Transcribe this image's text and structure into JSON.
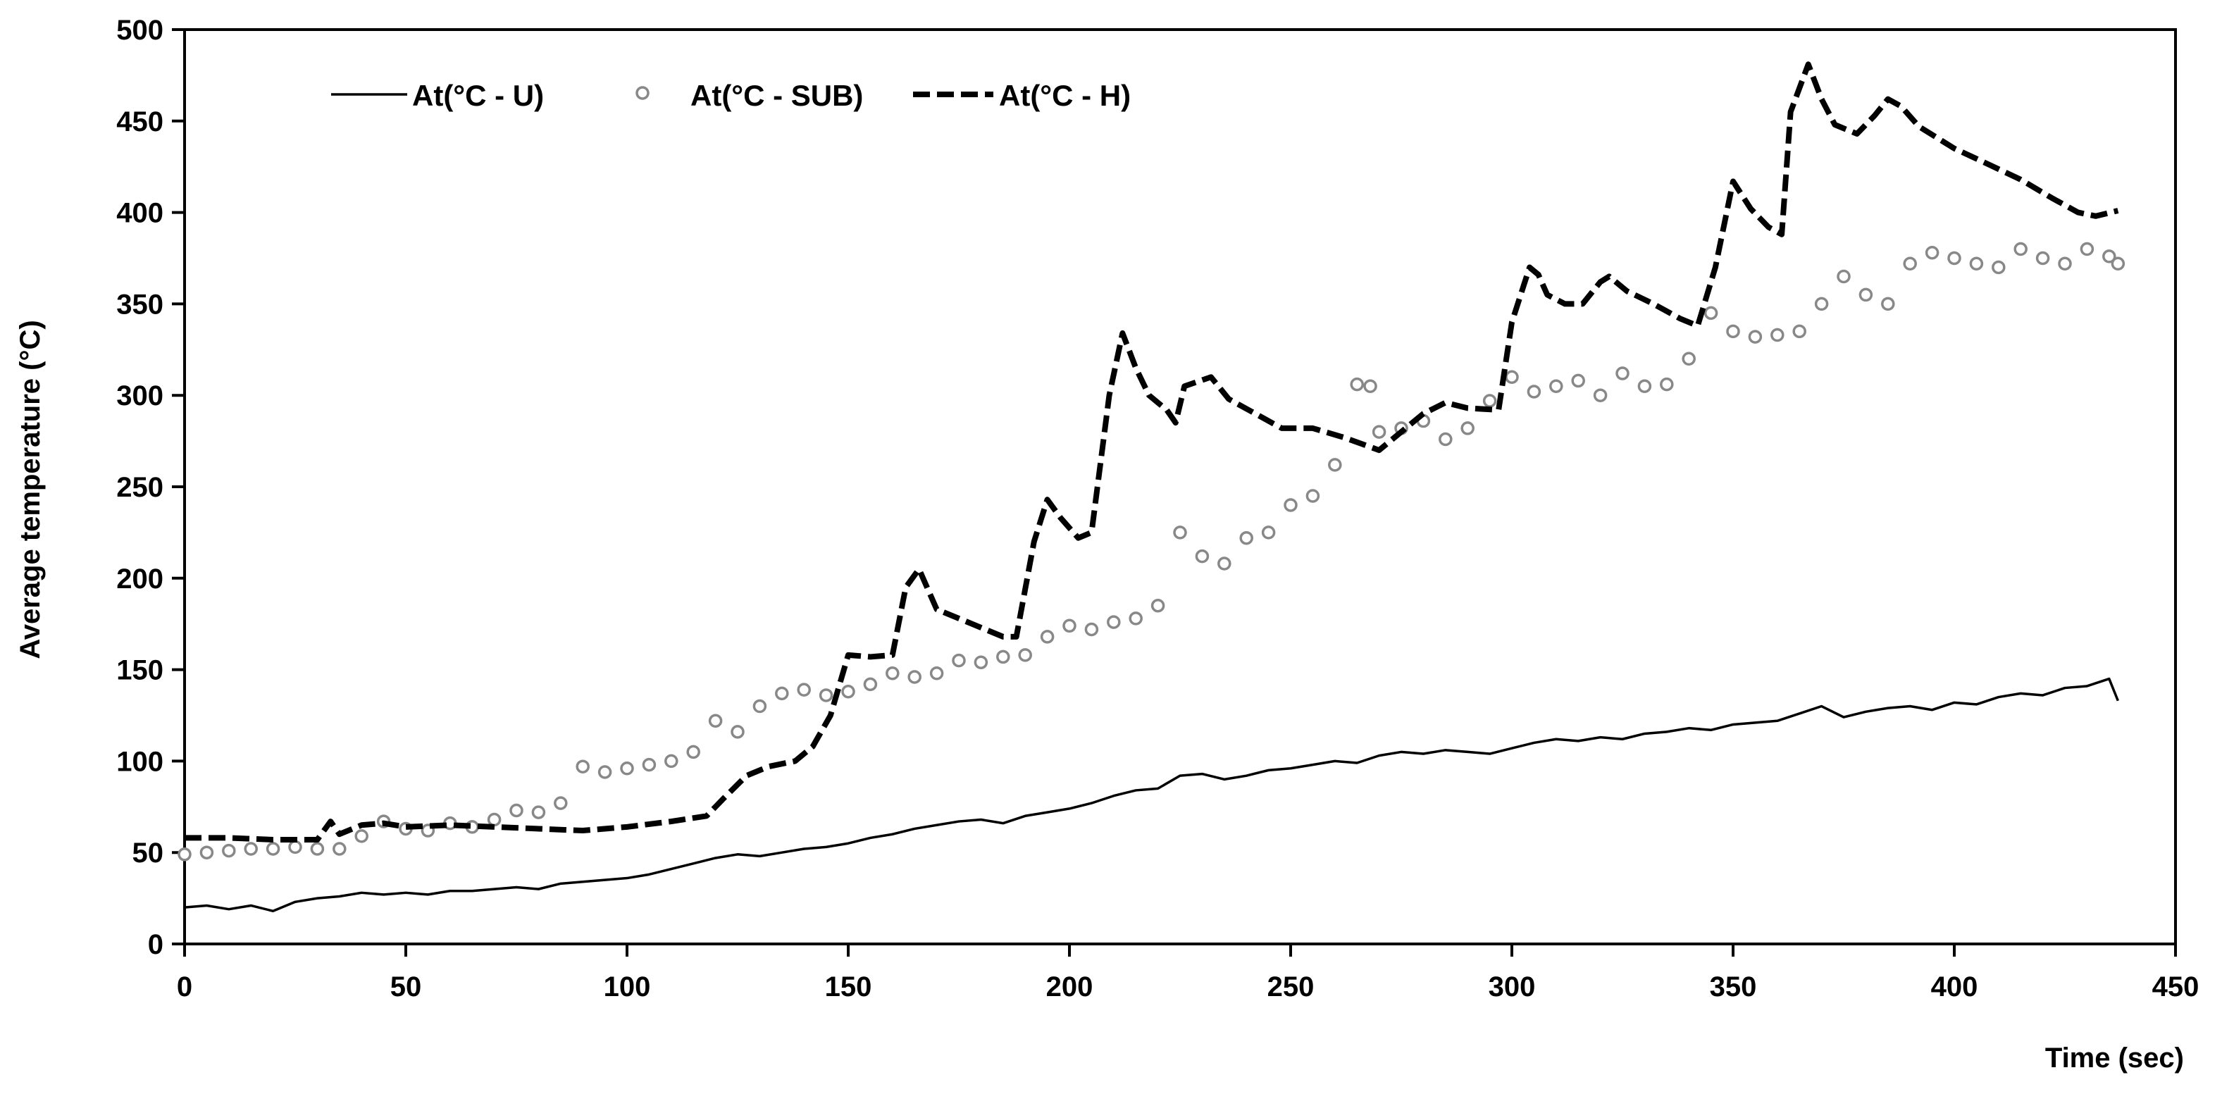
{
  "chart_data": {
    "type": "line",
    "title": "",
    "xlabel": "Time (sec)",
    "ylabel": "Average temperature (°C)",
    "xlim": [
      0,
      450
    ],
    "ylim": [
      0,
      500
    ],
    "xticks": [
      "0",
      "50",
      "100",
      "150",
      "200",
      "250",
      "300",
      "350",
      "400",
      "450"
    ],
    "yticks": [
      "0",
      "50",
      "100",
      "150",
      "200",
      "250",
      "300",
      "350",
      "400",
      "450",
      "500"
    ],
    "grid": false,
    "legend_position": "top-left",
    "series": [
      {
        "name": "At(°C - U)",
        "style": "solid-thin-line",
        "color": "#000000",
        "points": [
          [
            0,
            20
          ],
          [
            5,
            21
          ],
          [
            10,
            19
          ],
          [
            15,
            21
          ],
          [
            20,
            18
          ],
          [
            25,
            23
          ],
          [
            30,
            25
          ],
          [
            35,
            26
          ],
          [
            40,
            28
          ],
          [
            45,
            27
          ],
          [
            50,
            28
          ],
          [
            55,
            27
          ],
          [
            60,
            29
          ],
          [
            65,
            29
          ],
          [
            70,
            30
          ],
          [
            75,
            31
          ],
          [
            80,
            30
          ],
          [
            85,
            33
          ],
          [
            90,
            34
          ],
          [
            95,
            35
          ],
          [
            100,
            36
          ],
          [
            105,
            38
          ],
          [
            110,
            41
          ],
          [
            115,
            44
          ],
          [
            120,
            47
          ],
          [
            125,
            49
          ],
          [
            130,
            48
          ],
          [
            135,
            50
          ],
          [
            140,
            52
          ],
          [
            145,
            53
          ],
          [
            150,
            55
          ],
          [
            155,
            58
          ],
          [
            160,
            60
          ],
          [
            165,
            63
          ],
          [
            170,
            65
          ],
          [
            175,
            67
          ],
          [
            180,
            68
          ],
          [
            185,
            66
          ],
          [
            190,
            70
          ],
          [
            195,
            72
          ],
          [
            200,
            74
          ],
          [
            205,
            77
          ],
          [
            210,
            81
          ],
          [
            215,
            84
          ],
          [
            220,
            85
          ],
          [
            225,
            92
          ],
          [
            230,
            93
          ],
          [
            235,
            90
          ],
          [
            240,
            92
          ],
          [
            245,
            95
          ],
          [
            250,
            96
          ],
          [
            255,
            98
          ],
          [
            260,
            100
          ],
          [
            265,
            99
          ],
          [
            270,
            103
          ],
          [
            275,
            105
          ],
          [
            280,
            104
          ],
          [
            285,
            106
          ],
          [
            290,
            105
          ],
          [
            295,
            104
          ],
          [
            300,
            107
          ],
          [
            305,
            110
          ],
          [
            310,
            112
          ],
          [
            315,
            111
          ],
          [
            320,
            113
          ],
          [
            325,
            112
          ],
          [
            330,
            115
          ],
          [
            335,
            116
          ],
          [
            340,
            118
          ],
          [
            345,
            117
          ],
          [
            350,
            120
          ],
          [
            355,
            121
          ],
          [
            360,
            122
          ],
          [
            365,
            126
          ],
          [
            370,
            130
          ],
          [
            375,
            124
          ],
          [
            380,
            127
          ],
          [
            385,
            129
          ],
          [
            390,
            130
          ],
          [
            395,
            128
          ],
          [
            400,
            132
          ],
          [
            405,
            131
          ],
          [
            410,
            135
          ],
          [
            415,
            137
          ],
          [
            420,
            136
          ],
          [
            425,
            140
          ],
          [
            430,
            141
          ],
          [
            435,
            145
          ],
          [
            437,
            133
          ]
        ]
      },
      {
        "name": "At(°C - SUB)",
        "style": "hollow-markers",
        "color": "#888888",
        "points": [
          [
            0,
            49
          ],
          [
            5,
            50
          ],
          [
            10,
            51
          ],
          [
            15,
            52
          ],
          [
            20,
            52
          ],
          [
            25,
            53
          ],
          [
            30,
            52
          ],
          [
            35,
            52
          ],
          [
            40,
            59
          ],
          [
            45,
            67
          ],
          [
            50,
            63
          ],
          [
            55,
            62
          ],
          [
            60,
            66
          ],
          [
            65,
            64
          ],
          [
            70,
            68
          ],
          [
            75,
            73
          ],
          [
            80,
            72
          ],
          [
            85,
            77
          ],
          [
            90,
            97
          ],
          [
            95,
            94
          ],
          [
            100,
            96
          ],
          [
            105,
            98
          ],
          [
            110,
            100
          ],
          [
            115,
            105
          ],
          [
            120,
            122
          ],
          [
            125,
            116
          ],
          [
            130,
            130
          ],
          [
            135,
            137
          ],
          [
            140,
            139
          ],
          [
            145,
            136
          ],
          [
            150,
            138
          ],
          [
            155,
            142
          ],
          [
            160,
            148
          ],
          [
            165,
            146
          ],
          [
            170,
            148
          ],
          [
            175,
            155
          ],
          [
            180,
            154
          ],
          [
            185,
            157
          ],
          [
            190,
            158
          ],
          [
            195,
            168
          ],
          [
            200,
            174
          ],
          [
            205,
            172
          ],
          [
            210,
            176
          ],
          [
            215,
            178
          ],
          [
            220,
            185
          ],
          [
            225,
            225
          ],
          [
            230,
            212
          ],
          [
            235,
            208
          ],
          [
            240,
            222
          ],
          [
            245,
            225
          ],
          [
            250,
            240
          ],
          [
            255,
            245
          ],
          [
            260,
            262
          ],
          [
            265,
            306
          ],
          [
            268,
            305
          ],
          [
            270,
            280
          ],
          [
            275,
            282
          ],
          [
            280,
            286
          ],
          [
            285,
            276
          ],
          [
            290,
            282
          ],
          [
            295,
            297
          ],
          [
            300,
            310
          ],
          [
            305,
            302
          ],
          [
            310,
            305
          ],
          [
            315,
            308
          ],
          [
            320,
            300
          ],
          [
            325,
            312
          ],
          [
            330,
            305
          ],
          [
            335,
            306
          ],
          [
            340,
            320
          ],
          [
            345,
            345
          ],
          [
            350,
            335
          ],
          [
            355,
            332
          ],
          [
            360,
            333
          ],
          [
            365,
            335
          ],
          [
            370,
            350
          ],
          [
            375,
            365
          ],
          [
            380,
            355
          ],
          [
            385,
            350
          ],
          [
            390,
            372
          ],
          [
            395,
            378
          ],
          [
            400,
            375
          ],
          [
            405,
            372
          ],
          [
            410,
            370
          ],
          [
            415,
            380
          ],
          [
            420,
            375
          ],
          [
            425,
            372
          ],
          [
            430,
            380
          ],
          [
            435,
            376
          ],
          [
            437,
            372
          ]
        ]
      },
      {
        "name": "At(°C - H)",
        "style": "dashed-thick-line",
        "color": "#000000",
        "points": [
          [
            0,
            58
          ],
          [
            10,
            58
          ],
          [
            20,
            57
          ],
          [
            30,
            57
          ],
          [
            33,
            67
          ],
          [
            35,
            60
          ],
          [
            40,
            65
          ],
          [
            45,
            66
          ],
          [
            50,
            64
          ],
          [
            60,
            65
          ],
          [
            70,
            64
          ],
          [
            80,
            63
          ],
          [
            90,
            62
          ],
          [
            100,
            64
          ],
          [
            110,
            67
          ],
          [
            118,
            70
          ],
          [
            122,
            80
          ],
          [
            127,
            92
          ],
          [
            132,
            97
          ],
          [
            138,
            100
          ],
          [
            142,
            108
          ],
          [
            146,
            125
          ],
          [
            150,
            158
          ],
          [
            155,
            157
          ],
          [
            160,
            158
          ],
          [
            163,
            195
          ],
          [
            166,
            205
          ],
          [
            170,
            183
          ],
          [
            175,
            178
          ],
          [
            180,
            173
          ],
          [
            185,
            168
          ],
          [
            188,
            168
          ],
          [
            192,
            220
          ],
          [
            195,
            243
          ],
          [
            198,
            233
          ],
          [
            202,
            222
          ],
          [
            205,
            225
          ],
          [
            209,
            300
          ],
          [
            212,
            334
          ],
          [
            215,
            315
          ],
          [
            218,
            300
          ],
          [
            222,
            292
          ],
          [
            224,
            285
          ],
          [
            226,
            305
          ],
          [
            232,
            310
          ],
          [
            236,
            298
          ],
          [
            242,
            290
          ],
          [
            248,
            282
          ],
          [
            255,
            282
          ],
          [
            262,
            277
          ],
          [
            270,
            270
          ],
          [
            275,
            280
          ],
          [
            280,
            290
          ],
          [
            285,
            296
          ],
          [
            290,
            293
          ],
          [
            297,
            292
          ],
          [
            300,
            340
          ],
          [
            304,
            370
          ],
          [
            306,
            366
          ],
          [
            308,
            355
          ],
          [
            312,
            350
          ],
          [
            316,
            350
          ],
          [
            320,
            362
          ],
          [
            322,
            365
          ],
          [
            326,
            357
          ],
          [
            332,
            350
          ],
          [
            338,
            342
          ],
          [
            342,
            338
          ],
          [
            346,
            370
          ],
          [
            350,
            417
          ],
          [
            354,
            402
          ],
          [
            358,
            392
          ],
          [
            361,
            388
          ],
          [
            363,
            455
          ],
          [
            367,
            481
          ],
          [
            370,
            462
          ],
          [
            373,
            448
          ],
          [
            378,
            443
          ],
          [
            382,
            453
          ],
          [
            385,
            462
          ],
          [
            388,
            458
          ],
          [
            392,
            447
          ],
          [
            400,
            435
          ],
          [
            408,
            426
          ],
          [
            415,
            418
          ],
          [
            422,
            408
          ],
          [
            428,
            400
          ],
          [
            432,
            398
          ],
          [
            437,
            401
          ]
        ]
      }
    ]
  }
}
